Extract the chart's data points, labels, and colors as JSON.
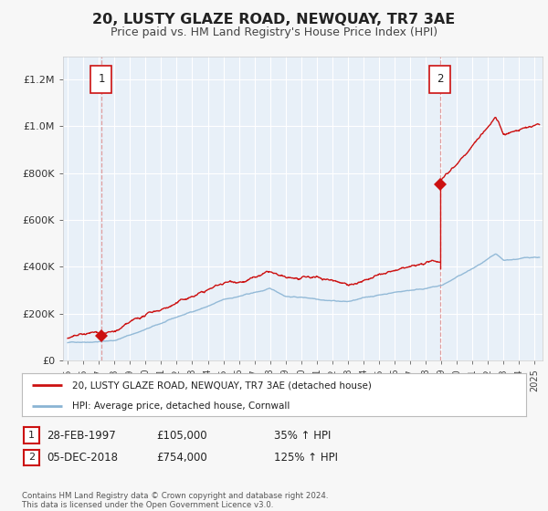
{
  "title": "20, LUSTY GLAZE ROAD, NEWQUAY, TR7 3AE",
  "subtitle": "Price paid vs. HM Land Registry's House Price Index (HPI)",
  "title_fontsize": 11.5,
  "subtitle_fontsize": 9,
  "background_color": "#f5f5f5",
  "plot_bg_color": "#e8f0f8",
  "grid_color": "#ffffff",
  "sale1_date": 1997.16,
  "sale1_price": 105000,
  "sale2_date": 2018.92,
  "sale2_price": 754000,
  "hpi_color": "#8ab4d4",
  "sale_color": "#cc1111",
  "dashed_line_color": "#dd8888",
  "legend_sale_label": "20, LUSTY GLAZE ROAD, NEWQUAY, TR7 3AE (detached house)",
  "legend_hpi_label": "HPI: Average price, detached house, Cornwall",
  "annotation1_date": "28-FEB-1997",
  "annotation1_price": "£105,000",
  "annotation1_hpi": "35% ↑ HPI",
  "annotation2_date": "05-DEC-2018",
  "annotation2_price": "£754,000",
  "annotation2_hpi": "125% ↑ HPI",
  "footer": "Contains HM Land Registry data © Crown copyright and database right 2024.\nThis data is licensed under the Open Government Licence v3.0.",
  "ylim": [
    0,
    1300000
  ],
  "xlim_start": 1994.7,
  "xlim_end": 2025.5
}
